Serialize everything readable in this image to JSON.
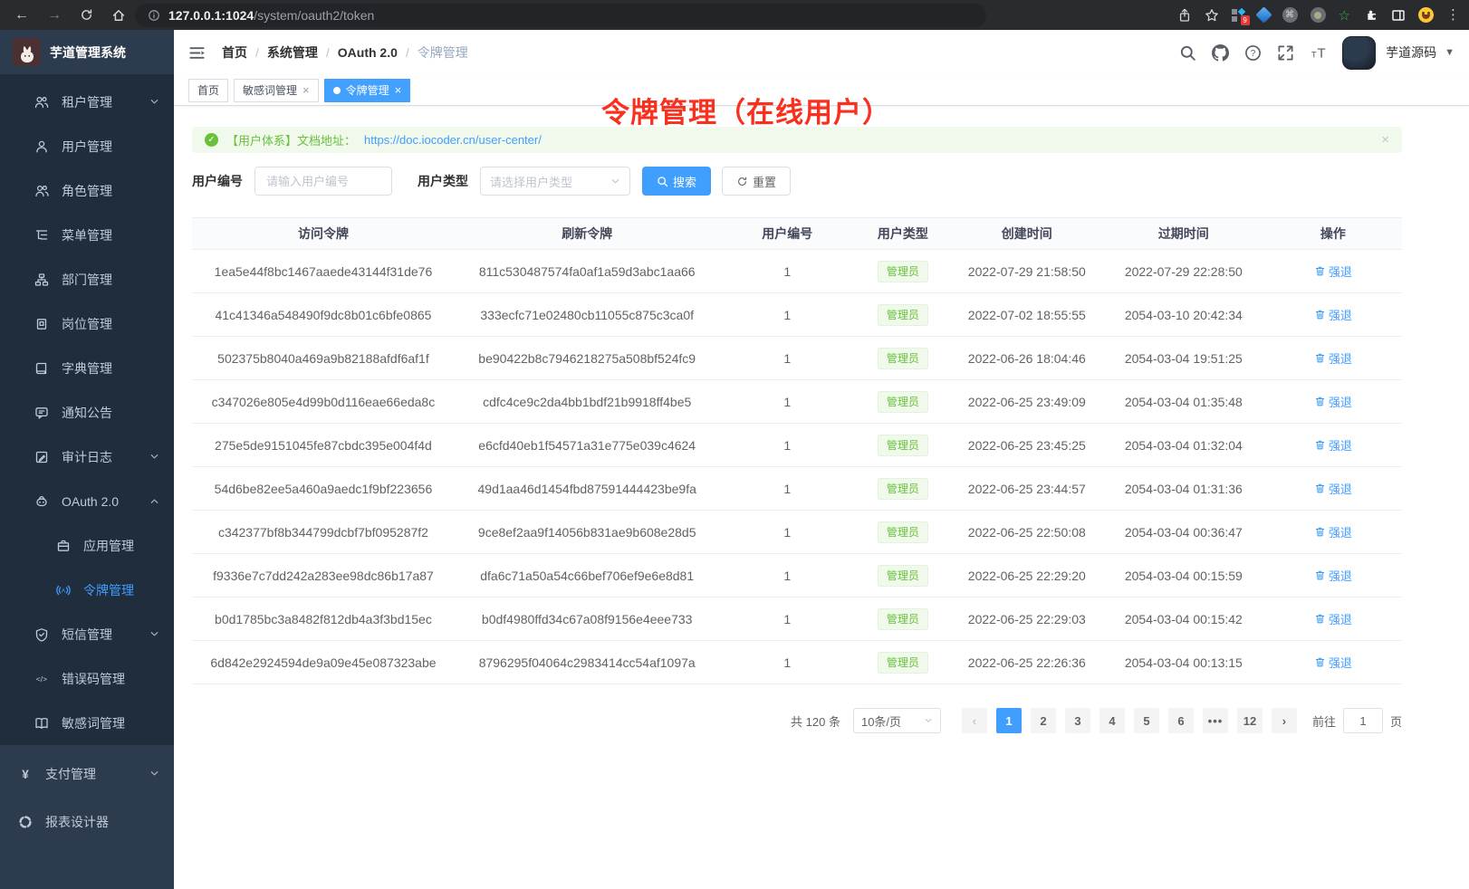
{
  "browser": {
    "url_host": "127.0.0.1:1024",
    "url_path": "/system/oauth2/token",
    "extension_badge": "9"
  },
  "app": {
    "title": "芋道管理系统",
    "breadcrumb": [
      "首页",
      "系统管理",
      "OAuth 2.0",
      "令牌管理"
    ],
    "header_icons": [
      "search",
      "github",
      "help",
      "fullscreen",
      "font-size"
    ],
    "user_name": "芋道源码"
  },
  "tabs": [
    {
      "label": "首页",
      "closable": false,
      "active": false
    },
    {
      "label": "敏感词管理",
      "closable": true,
      "active": false
    },
    {
      "label": "令牌管理",
      "closable": true,
      "active": true
    }
  ],
  "sidebar": {
    "menu_items": [
      {
        "label": "租户管理",
        "icon": "users",
        "level": 1,
        "arrow": "down"
      },
      {
        "label": "用户管理",
        "icon": "user",
        "level": 1
      },
      {
        "label": "角色管理",
        "icon": "role",
        "level": 1
      },
      {
        "label": "菜单管理",
        "icon": "tree",
        "level": 1
      },
      {
        "label": "部门管理",
        "icon": "org",
        "level": 1
      },
      {
        "label": "岗位管理",
        "icon": "badge",
        "level": 1
      },
      {
        "label": "字典管理",
        "icon": "dict",
        "level": 1
      },
      {
        "label": "通知公告",
        "icon": "chat",
        "level": 1
      },
      {
        "label": "审计日志",
        "icon": "log",
        "level": 1,
        "arrow": "down"
      },
      {
        "label": "OAuth 2.0",
        "icon": "robot",
        "level": 1,
        "arrow": "up"
      },
      {
        "label": "应用管理",
        "icon": "app",
        "level": 2
      },
      {
        "label": "令牌管理",
        "icon": "token",
        "level": 2,
        "active": true
      },
      {
        "label": "短信管理",
        "icon": "shield",
        "level": 1,
        "arrow": "down"
      },
      {
        "label": "错误码管理",
        "icon": "code",
        "level": 1
      },
      {
        "label": "敏感词管理",
        "icon": "book",
        "level": 1
      }
    ],
    "root_items": [
      {
        "label": "支付管理",
        "icon": "pay",
        "level": 0,
        "arrow": "down"
      },
      {
        "label": "报表设计器",
        "icon": "report",
        "level": 0
      }
    ]
  },
  "annotation": "令牌管理（在线用户）",
  "alert": {
    "text": "【用户体系】文档地址：",
    "link": "https://doc.iocoder.cn/user-center/"
  },
  "filters": {
    "user_id_label": "用户编号",
    "user_id_placeholder": "请输入用户编号",
    "user_type_label": "用户类型",
    "user_type_placeholder": "请选择用户类型",
    "search_label": "搜索",
    "reset_label": "重置"
  },
  "table": {
    "columns": [
      "访问令牌",
      "刷新令牌",
      "用户编号",
      "用户类型",
      "创建时间",
      "过期时间",
      "操作"
    ],
    "action_label": "强退",
    "rows": [
      {
        "access_token": "1ea5e44f8bc1467aaede43144f31de76",
        "refresh_token": "811c530487574fa0af1a59d3abc1aa66",
        "user_id": "1",
        "user_type": "管理员",
        "created_at": "2022-07-29 21:58:50",
        "expires_at": "2022-07-29 22:28:50"
      },
      {
        "access_token": "41c41346a548490f9dc8b01c6bfe0865",
        "refresh_token": "333ecfc71e02480cb11055c875c3ca0f",
        "user_id": "1",
        "user_type": "管理员",
        "created_at": "2022-07-02 18:55:55",
        "expires_at": "2054-03-10 20:42:34"
      },
      {
        "access_token": "502375b8040a469a9b82188afdf6af1f",
        "refresh_token": "be90422b8c7946218275a508bf524fc9",
        "user_id": "1",
        "user_type": "管理员",
        "created_at": "2022-06-26 18:04:46",
        "expires_at": "2054-03-04 19:51:25"
      },
      {
        "access_token": "c347026e805e4d99b0d116eae66eda8c",
        "refresh_token": "cdfc4ce9c2da4bb1bdf21b9918ff4be5",
        "user_id": "1",
        "user_type": "管理员",
        "created_at": "2022-06-25 23:49:09",
        "expires_at": "2054-03-04 01:35:48"
      },
      {
        "access_token": "275e5de9151045fe87cbdc395e004f4d",
        "refresh_token": "e6cfd40eb1f54571a31e775e039c4624",
        "user_id": "1",
        "user_type": "管理员",
        "created_at": "2022-06-25 23:45:25",
        "expires_at": "2054-03-04 01:32:04"
      },
      {
        "access_token": "54d6be82ee5a460a9aedc1f9bf223656",
        "refresh_token": "49d1aa46d1454fbd87591444423be9fa",
        "user_id": "1",
        "user_type": "管理员",
        "created_at": "2022-06-25 23:44:57",
        "expires_at": "2054-03-04 01:31:36"
      },
      {
        "access_token": "c342377bf8b344799dcbf7bf095287f2",
        "refresh_token": "9ce8ef2aa9f14056b831ae9b608e28d5",
        "user_id": "1",
        "user_type": "管理员",
        "created_at": "2022-06-25 22:50:08",
        "expires_at": "2054-03-04 00:36:47"
      },
      {
        "access_token": "f9336e7c7dd242a283ee98dc86b17a87",
        "refresh_token": "dfa6c71a50a54c66bef706ef9e6e8d81",
        "user_id": "1",
        "user_type": "管理员",
        "created_at": "2022-06-25 22:29:20",
        "expires_at": "2054-03-04 00:15:59"
      },
      {
        "access_token": "b0d1785bc3a8482f812db4a3f3bd15ec",
        "refresh_token": "b0df4980ffd34c67a08f9156e4eee733",
        "user_id": "1",
        "user_type": "管理员",
        "created_at": "2022-06-25 22:29:03",
        "expires_at": "2054-03-04 00:15:42"
      },
      {
        "access_token": "6d842e2924594de9a09e45e087323abe",
        "refresh_token": "8796295f04064c2983414cc54af1097a",
        "user_id": "1",
        "user_type": "管理员",
        "created_at": "2022-06-25 22:26:36",
        "expires_at": "2054-03-04 00:13:15"
      }
    ]
  },
  "pagination": {
    "total_text": "共 120 条",
    "page_size": "10条/页",
    "pages": [
      "1",
      "2",
      "3",
      "4",
      "5",
      "6",
      "...",
      "12"
    ],
    "active_page": "1",
    "prev_label": "‹",
    "next_label": "›",
    "goto_label": "前往",
    "goto_value": "1",
    "page_label": "页"
  },
  "colors": {
    "accent": "#409eff",
    "success": "#67c23a",
    "annotation_red": "#f8301d",
    "sidebar_bg": "#1f2d3d",
    "sidebar_root_bg": "#2d3b4f"
  }
}
